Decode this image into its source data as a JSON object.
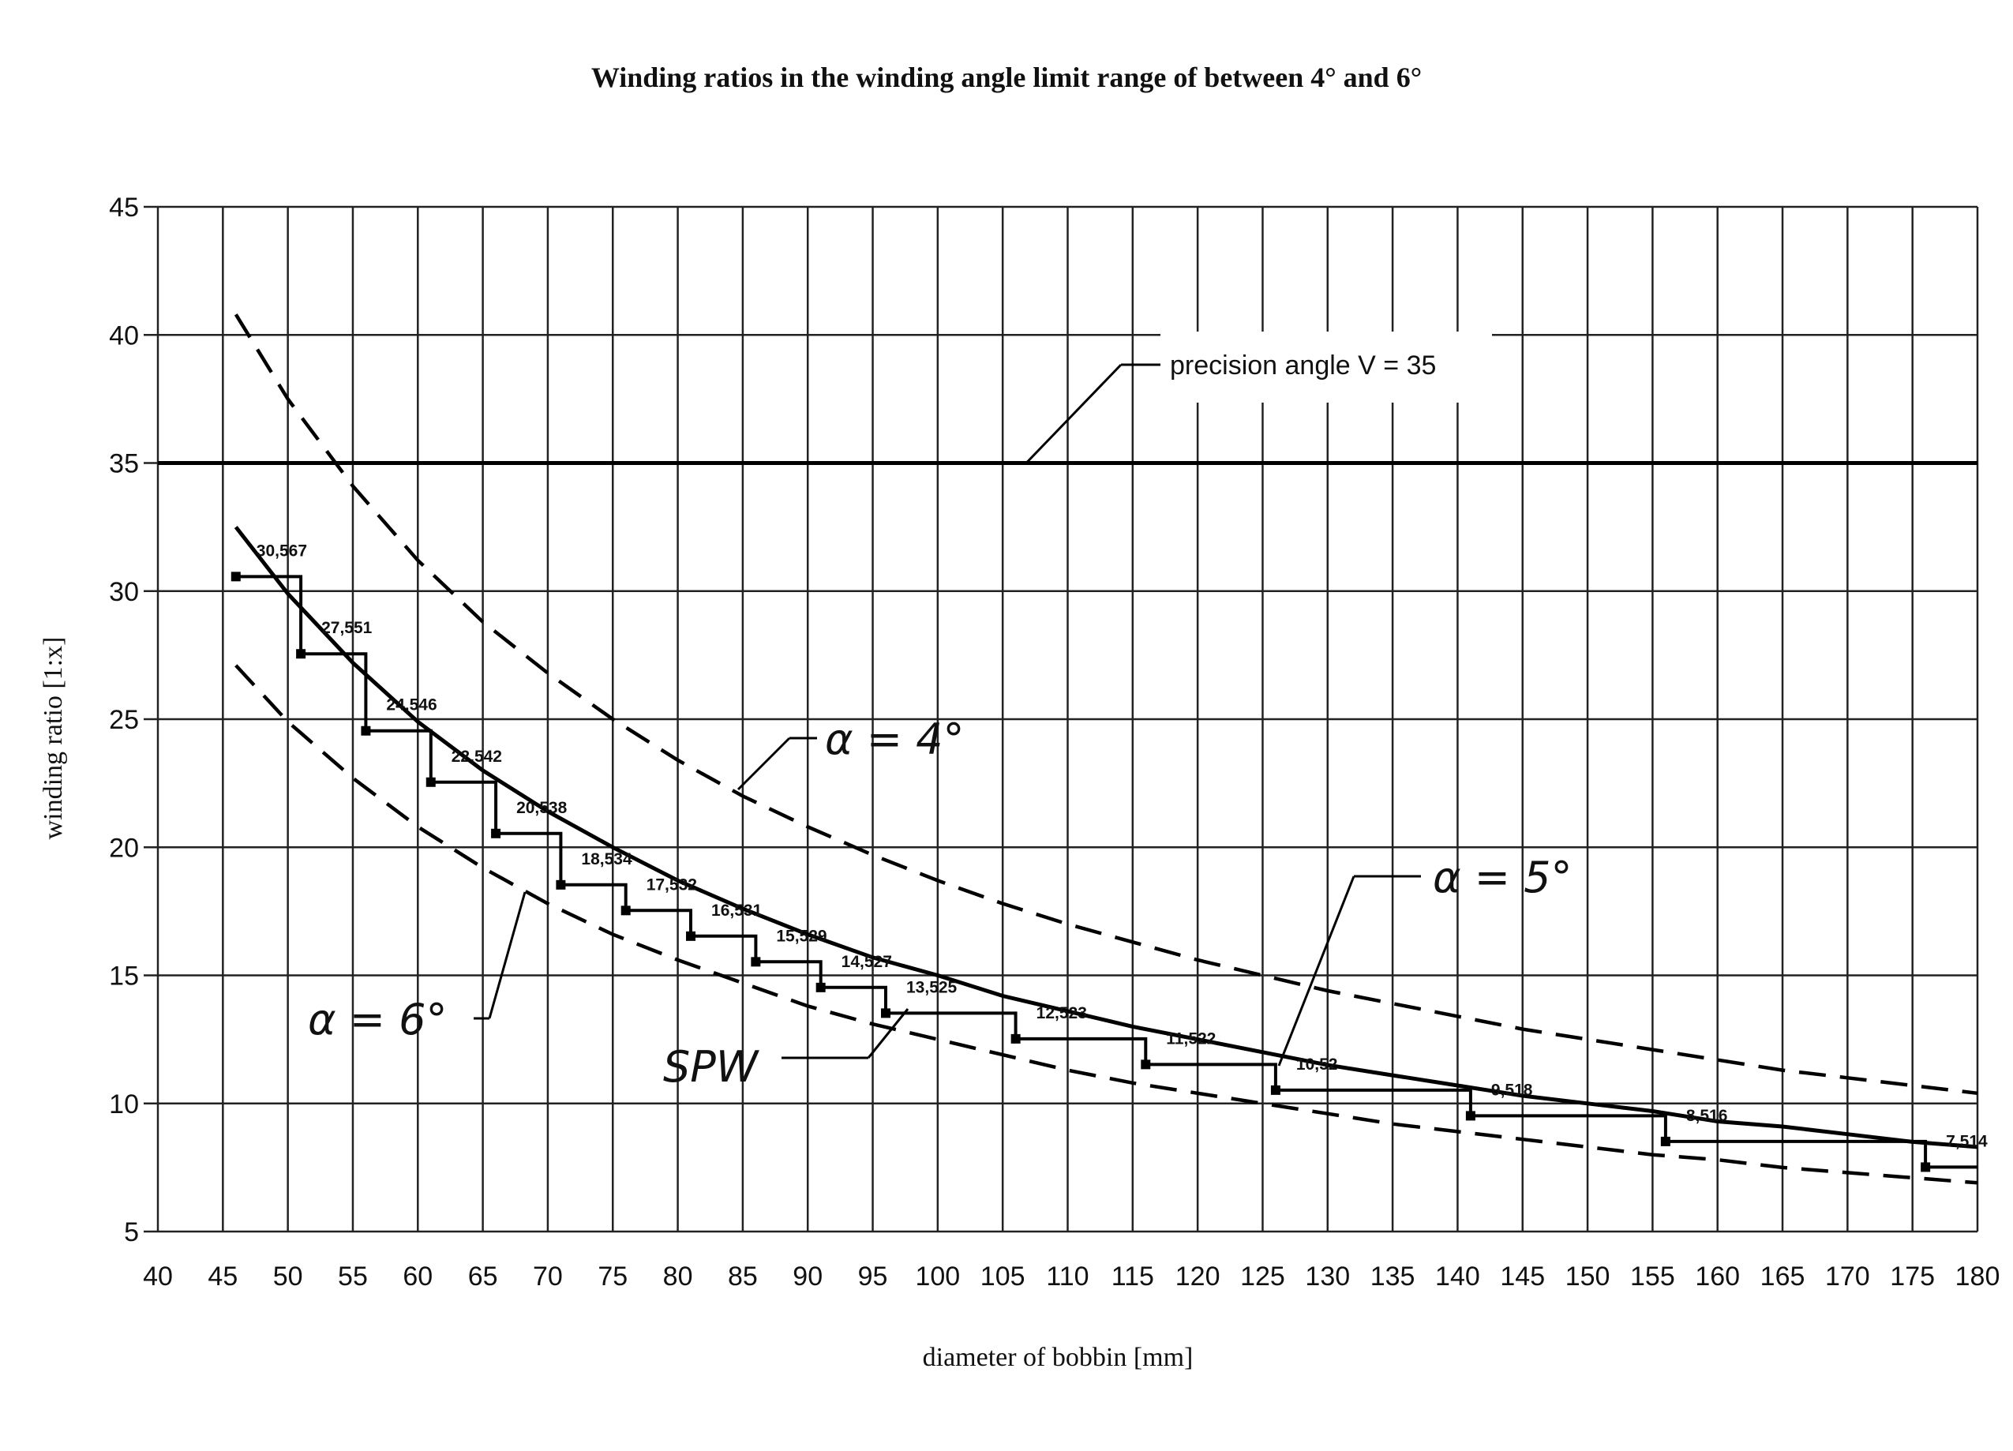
{
  "chart_data": {
    "type": "line",
    "title": "Winding ratios in the winding angle limit range of between 4° and 6°",
    "xlabel": "diameter of bobbin [mm]",
    "ylabel": "winding ratio [1:x]",
    "xlim": [
      40,
      180
    ],
    "ylim": [
      5,
      45
    ],
    "x_ticks": [
      40,
      45,
      50,
      55,
      60,
      65,
      70,
      75,
      80,
      85,
      90,
      95,
      100,
      105,
      110,
      115,
      120,
      125,
      130,
      135,
      140,
      145,
      150,
      155,
      160,
      165,
      170,
      175,
      180
    ],
    "y_ticks": [
      5,
      10,
      15,
      20,
      25,
      30,
      35,
      40,
      45
    ],
    "grid": true,
    "reference_line": {
      "y": 35,
      "label": "precision angle  V = 35"
    },
    "series": [
      {
        "name": "α = 4°",
        "style": "dashed",
        "x": [
          46,
          50,
          55,
          60,
          65,
          70,
          75,
          80,
          85,
          90,
          95,
          100,
          105,
          110,
          115,
          120,
          125,
          130,
          135,
          140,
          145,
          150,
          155,
          160,
          165,
          170,
          175,
          180
        ],
        "values": [
          40.8,
          37.5,
          34.1,
          31.2,
          28.8,
          26.8,
          25.0,
          23.4,
          22.0,
          20.8,
          19.7,
          18.7,
          17.8,
          17.0,
          16.3,
          15.6,
          15.0,
          14.4,
          13.9,
          13.4,
          12.9,
          12.5,
          12.1,
          11.7,
          11.3,
          11.0,
          10.7,
          10.4
        ]
      },
      {
        "name": "α = 5°",
        "style": "solid",
        "x": [
          46,
          50,
          55,
          60,
          65,
          70,
          75,
          80,
          85,
          90,
          95,
          100,
          105,
          110,
          115,
          120,
          125,
          130,
          135,
          140,
          145,
          150,
          155,
          160,
          165,
          170,
          175,
          180
        ],
        "values": [
          32.5,
          29.9,
          27.2,
          24.9,
          23.0,
          21.4,
          20.0,
          18.7,
          17.6,
          16.6,
          15.7,
          15.0,
          14.2,
          13.6,
          13.0,
          12.5,
          12.0,
          11.5,
          11.1,
          10.7,
          10.3,
          10.0,
          9.7,
          9.3,
          9.1,
          8.8,
          8.5,
          8.3
        ]
      },
      {
        "name": "α = 6°",
        "style": "dashed",
        "x": [
          46,
          50,
          55,
          60,
          65,
          70,
          75,
          80,
          85,
          90,
          95,
          100,
          105,
          110,
          115,
          120,
          125,
          130,
          135,
          140,
          145,
          150,
          155,
          160,
          165,
          170,
          175,
          180
        ],
        "values": [
          27.1,
          24.9,
          22.7,
          20.8,
          19.2,
          17.8,
          16.6,
          15.6,
          14.7,
          13.8,
          13.1,
          12.5,
          11.9,
          11.3,
          10.8,
          10.4,
          10.0,
          9.6,
          9.2,
          8.9,
          8.6,
          8.3,
          8.0,
          7.8,
          7.5,
          7.3,
          7.1,
          6.9
        ]
      },
      {
        "name": "SPW",
        "style": "step",
        "points": [
          {
            "x": 46,
            "y": 30.567
          },
          {
            "x": 51,
            "y": 27.551
          },
          {
            "x": 56,
            "y": 24.546
          },
          {
            "x": 61,
            "y": 22.542
          },
          {
            "x": 66,
            "y": 20.538
          },
          {
            "x": 71,
            "y": 18.534
          },
          {
            "x": 76,
            "y": 17.532
          },
          {
            "x": 81,
            "y": 16.531
          },
          {
            "x": 86,
            "y": 15.529
          },
          {
            "x": 91,
            "y": 14.527
          },
          {
            "x": 96,
            "y": 13.525
          },
          {
            "x": 106,
            "y": 12.523
          },
          {
            "x": 116,
            "y": 11.522
          },
          {
            "x": 126,
            "y": 10.52
          },
          {
            "x": 141,
            "y": 9.518
          },
          {
            "x": 156,
            "y": 8.516
          },
          {
            "x": 176,
            "y": 7.514
          }
        ],
        "end_x": 180
      }
    ],
    "point_labels": [
      "30,567",
      "27,551",
      "24,546",
      "22,542",
      "20,538",
      "18,534",
      "17,532",
      "16,531",
      "15,529",
      "14,527",
      "13,525",
      "12,523",
      "11,522",
      "10,52",
      "9,518",
      "8,516",
      "7,514"
    ],
    "annotations": {
      "alpha4": "α = 4°",
      "alpha5": "α = 5°",
      "alpha6": "α = 6°",
      "spw": "SPW"
    }
  }
}
